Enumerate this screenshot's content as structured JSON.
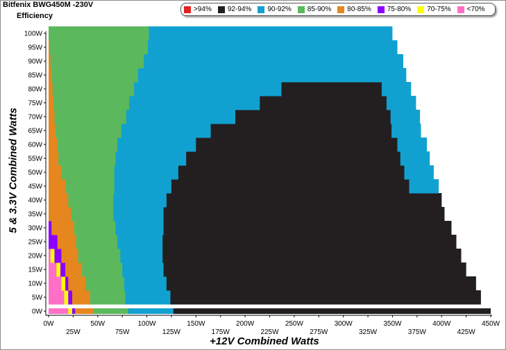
{
  "header": {
    "title": "Bitfenix BWG450M -230V",
    "subtitle": "Efficiency"
  },
  "legend": [
    {
      "label": ">94%",
      "color": "#e32222"
    },
    {
      "label": "92-94%",
      "color": "#231f20"
    },
    {
      "label": "90-92%",
      "color": "#11a1d0"
    },
    {
      "label": "85-90%",
      "color": "#5cb85c"
    },
    {
      "label": "80-85%",
      "color": "#e5871e"
    },
    {
      "label": "75-80%",
      "color": "#8b00ff"
    },
    {
      "label": "70-75%",
      "color": "#ffff00"
    },
    {
      "label": "<70%",
      "color": "#ff6ec7"
    }
  ],
  "chart_data": {
    "type": "heatmap",
    "title": "Efficiency",
    "xlabel": "+12V Combined Watts",
    "ylabel": "5 & 3.3V Combined Watts",
    "xlim": [
      0,
      450
    ],
    "ylim": [
      0,
      100
    ],
    "x_ticks": [
      "0W",
      "25W",
      "50W",
      "75W",
      "100W",
      "125W",
      "150W",
      "175W",
      "200W",
      "225W",
      "250W",
      "275W",
      "300W",
      "325W",
      "350W",
      "375W",
      "400W",
      "425W",
      "450W"
    ],
    "y_ticks": [
      "0W",
      "5W",
      "10W",
      "15W",
      "20W",
      "25W",
      "30W",
      "35W",
      "40W",
      "45W",
      "50W",
      "55W",
      "60W",
      "65W",
      "70W",
      "75W",
      "80W",
      "85W",
      "90W",
      "95W",
      "100W"
    ],
    "y_levels": [
      0,
      5,
      10,
      15,
      20,
      25,
      30,
      35,
      40,
      45,
      50,
      55,
      60,
      65,
      70,
      75,
      80,
      85,
      90,
      95,
      100
    ],
    "region_boundaries_x_watts": {
      "lt70_to_70_75": [
        0,
        0,
        0,
        0,
        0
      ],
      "70_75_to_75_80": [
        24,
        20,
        17,
        12,
        6
      ],
      "75_80_to_80_85": [
        27,
        24,
        20,
        17,
        13,
        9,
        3
      ],
      "80_85_to_85_90": [
        46,
        42,
        38,
        34,
        30,
        28,
        26,
        23,
        20,
        17,
        13,
        10,
        9,
        7,
        6,
        5,
        4,
        3,
        2,
        1,
        0
      ],
      "85_90_to_90_92": [
        81,
        78,
        77,
        75,
        73,
        70,
        68,
        66,
        66,
        67,
        67,
        68,
        70,
        74,
        79,
        82,
        87,
        91,
        97,
        101,
        102
      ],
      "90_92_to_92_94": [
        127,
        124,
        120,
        117,
        116,
        116,
        117,
        117,
        120,
        125,
        132,
        140,
        150,
        165,
        190,
        215,
        237,
        null,
        null,
        null,
        null
      ],
      "plot_edge": [
        450,
        440,
        435,
        425,
        420,
        415,
        410,
        403,
        400,
        397,
        392,
        388,
        385,
        379,
        378,
        374,
        369,
        364,
        361,
        355,
        350
      ]
    }
  },
  "axis_labels": {
    "x": "+12V Combined Watts",
    "y": "5 & 3.3V Combined Watts"
  }
}
